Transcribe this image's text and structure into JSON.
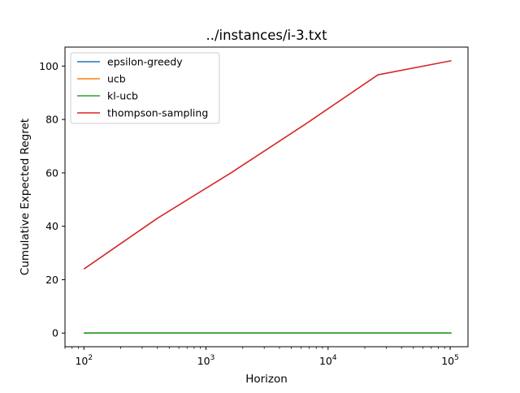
{
  "chart_data": {
    "type": "line",
    "title": "../instances/i-3.txt",
    "xlabel": "Horizon",
    "ylabel": "Cumulative Expected Regret",
    "xscale": "log",
    "xlim": [
      70,
      140000
    ],
    "ylim": [
      -5.1,
      107.1
    ],
    "x_ticks": [
      {
        "value": 100,
        "base": "10",
        "exp": "2"
      },
      {
        "value": 1000,
        "base": "10",
        "exp": "3"
      },
      {
        "value": 10000,
        "base": "10",
        "exp": "4"
      },
      {
        "value": 100000,
        "base": "10",
        "exp": "5"
      }
    ],
    "y_ticks": [
      0,
      20,
      40,
      60,
      80,
      100
    ],
    "grid": false,
    "legend_position": "top-left",
    "x": [
      100,
      400,
      1600,
      6400,
      25600,
      102400
    ],
    "series": [
      {
        "name": "epsilon-greedy",
        "color": "#1f77b4",
        "values": [
          0,
          0,
          0,
          0,
          0,
          0
        ]
      },
      {
        "name": "ucb",
        "color": "#ff7f0e",
        "values": [
          0,
          0,
          0,
          0,
          0,
          0
        ]
      },
      {
        "name": "kl-ucb",
        "color": "#2ca02c",
        "values": [
          0,
          0,
          0,
          0,
          0,
          0
        ]
      },
      {
        "name": "thompson-sampling",
        "color": "#d62728",
        "values": [
          24,
          43,
          60,
          78,
          96.7,
          102
        ]
      }
    ]
  }
}
